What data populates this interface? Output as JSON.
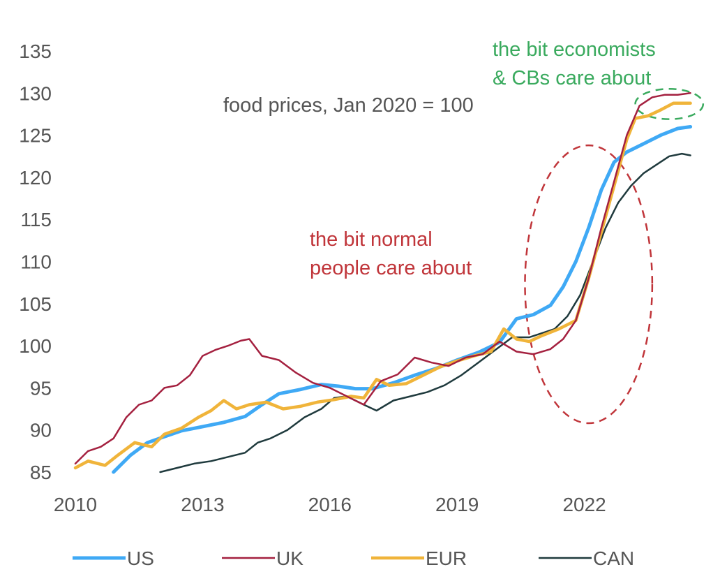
{
  "chart_data": {
    "type": "line",
    "title": "food prices, Jan 2020 = 100",
    "xlabel": "",
    "ylabel": "",
    "xlim": [
      2010,
      2024.6
    ],
    "ylim": [
      85,
      135
    ],
    "grid": false,
    "legend_position": "bottom",
    "x_ticks": [
      "2010",
      "2013",
      "2016",
      "2019",
      "2022"
    ],
    "x_tick_values": [
      2010,
      2013,
      2016,
      2019,
      2022
    ],
    "y_ticks": [
      "85",
      "90",
      "95",
      "100",
      "105",
      "110",
      "115",
      "120",
      "125",
      "130",
      "135"
    ],
    "y_tick_values": [
      85,
      90,
      95,
      100,
      105,
      110,
      115,
      120,
      125,
      130,
      135
    ],
    "series": [
      {
        "name": "US",
        "color": "#3fa9f5",
        "x": [
          2010.9,
          2011.3,
          2011.7,
          2012.1,
          2012.5,
          2013.0,
          2013.5,
          2014.0,
          2014.4,
          2014.8,
          2015.3,
          2015.8,
          2016.2,
          2016.6,
          2017.0,
          2017.5,
          2018.0,
          2018.5,
          2019.0,
          2019.5,
          2020.0,
          2020.4,
          2020.8,
          2021.2,
          2021.5,
          2021.8,
          2022.1,
          2022.4,
          2022.7,
          2023.0,
          2023.4,
          2023.8,
          2024.2,
          2024.5
        ],
        "values": [
          85.0,
          87.0,
          88.5,
          89.2,
          89.9,
          90.4,
          90.9,
          91.6,
          93.0,
          94.3,
          94.8,
          95.4,
          95.2,
          94.9,
          94.9,
          95.6,
          96.5,
          97.3,
          98.3,
          99.2,
          100.4,
          103.2,
          103.7,
          104.8,
          107.0,
          110.0,
          114.0,
          118.5,
          121.8,
          123.0,
          124.0,
          125.0,
          125.8,
          126.0
        ]
      },
      {
        "name": "UK",
        "color": "#a4203f",
        "x": [
          2010.0,
          2010.3,
          2010.6,
          2010.9,
          2011.2,
          2011.5,
          2011.8,
          2012.1,
          2012.4,
          2012.7,
          2013.0,
          2013.3,
          2013.6,
          2013.9,
          2014.1,
          2014.4,
          2014.8,
          2015.2,
          2015.6,
          2016.0,
          2016.4,
          2016.8,
          2017.2,
          2017.6,
          2018.0,
          2018.4,
          2018.8,
          2019.2,
          2019.6,
          2020.0,
          2020.4,
          2020.8,
          2021.2,
          2021.5,
          2021.8,
          2022.1,
          2022.4,
          2022.7,
          2023.0,
          2023.3,
          2023.6,
          2023.9,
          2024.2,
          2024.5
        ],
        "values": [
          86.0,
          87.5,
          88.0,
          89.0,
          91.5,
          93.0,
          93.5,
          95.0,
          95.3,
          96.5,
          98.8,
          99.5,
          100.0,
          100.6,
          100.8,
          98.8,
          98.3,
          96.8,
          95.6,
          95.0,
          94.0,
          93.0,
          95.8,
          96.6,
          98.6,
          98.0,
          97.6,
          98.6,
          99.0,
          100.5,
          99.3,
          99.0,
          99.6,
          100.8,
          103.0,
          108.0,
          114.0,
          119.5,
          125.0,
          128.5,
          129.5,
          129.8,
          129.8,
          130.0
        ]
      },
      {
        "name": "EUR",
        "color": "#f0b43a",
        "x": [
          2010.0,
          2010.3,
          2010.7,
          2011.0,
          2011.4,
          2011.8,
          2012.1,
          2012.5,
          2012.9,
          2013.2,
          2013.5,
          2013.8,
          2014.1,
          2014.5,
          2014.9,
          2015.3,
          2015.7,
          2016.1,
          2016.5,
          2016.8,
          2017.1,
          2017.4,
          2017.8,
          2018.2,
          2018.6,
          2019.0,
          2019.4,
          2019.8,
          2020.1,
          2020.4,
          2020.7,
          2021.0,
          2021.4,
          2021.8,
          2022.1,
          2022.4,
          2022.7,
          2023.0,
          2023.2,
          2023.5,
          2023.8,
          2024.1,
          2024.5
        ],
        "values": [
          85.5,
          86.3,
          85.8,
          87.0,
          88.5,
          88.0,
          89.5,
          90.2,
          91.5,
          92.3,
          93.5,
          92.5,
          93.0,
          93.3,
          92.5,
          92.8,
          93.3,
          93.6,
          94.0,
          93.8,
          96.0,
          95.3,
          95.5,
          96.5,
          97.5,
          98.2,
          98.8,
          99.3,
          102.0,
          100.8,
          100.5,
          101.2,
          102.0,
          103.0,
          108.0,
          113.5,
          119.0,
          124.5,
          127.0,
          127.3,
          128.0,
          128.8,
          128.8
        ]
      },
      {
        "name": "CAN",
        "color": "#1f3a3d",
        "x": [
          2012.0,
          2012.4,
          2012.8,
          2013.2,
          2013.6,
          2014.0,
          2014.3,
          2014.6,
          2015.0,
          2015.4,
          2015.8,
          2016.1,
          2016.4,
          2016.8,
          2017.1,
          2017.5,
          2017.9,
          2018.3,
          2018.7,
          2019.1,
          2019.5,
          2019.9,
          2020.3,
          2020.7,
          2021.0,
          2021.3,
          2021.6,
          2021.9,
          2022.2,
          2022.5,
          2022.8,
          2023.1,
          2023.4,
          2023.7,
          2024.0,
          2024.3,
          2024.5
        ],
        "values": [
          85.0,
          85.5,
          86.0,
          86.3,
          86.8,
          87.3,
          88.5,
          89.0,
          90.0,
          91.5,
          92.5,
          93.8,
          94.0,
          93.0,
          92.3,
          93.5,
          94.0,
          94.5,
          95.3,
          96.5,
          98.0,
          99.5,
          101.0,
          101.0,
          101.5,
          102.0,
          103.5,
          106.0,
          110.0,
          114.0,
          117.0,
          119.0,
          120.5,
          121.5,
          122.5,
          122.8,
          122.6
        ]
      }
    ],
    "annotations": [
      {
        "text_lines": [
          "food prices, Jan 2020 = 100"
        ],
        "color": "#555555"
      },
      {
        "text_lines": [
          "the bit normal",
          "people care about"
        ],
        "color": "#c0353a"
      },
      {
        "text_lines": [
          "the bit economists",
          "& CBs care about"
        ],
        "color": "#3aaa5e"
      }
    ],
    "highlight_ellipses": [
      {
        "name": "normal-people-ellipse",
        "color": "#c0353a",
        "x_center": 2022.1,
        "y_center": 107.3,
        "x_radius": 1.5,
        "y_radius": 16.5
      },
      {
        "name": "economists-ellipse",
        "color": "#3aaa5e",
        "x_center": 2024.0,
        "y_center": 128.7,
        "x_radius": 0.8,
        "y_radius": 1.8
      }
    ]
  }
}
